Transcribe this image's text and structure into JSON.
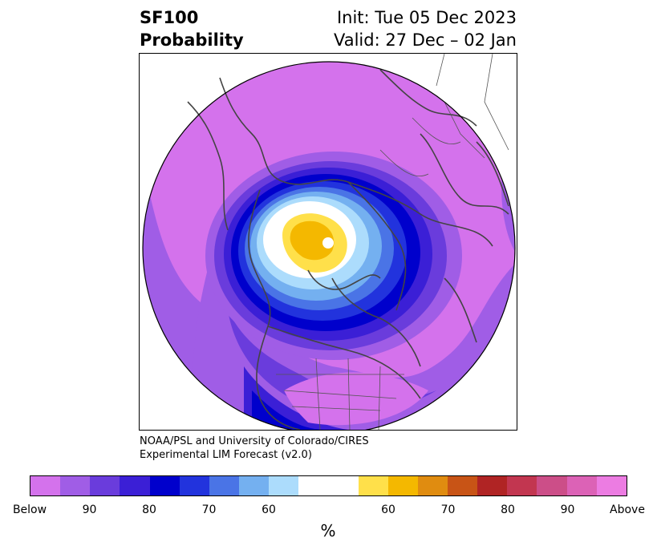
{
  "title": {
    "line1_left": "SF100",
    "line2_left": "Probability",
    "line1_right": "Init: Tue 05 Dec 2023",
    "line2_right": "Valid: 27 Dec – 02 Jan"
  },
  "credit": {
    "line1": "NOAA/PSL and University of Colorado/CIRES",
    "line2": "Experimental LIM Forecast (v2.0)"
  },
  "colorbar": {
    "unit_label": "%",
    "colors": [
      "#d472ec",
      "#a05de6",
      "#6a3cdc",
      "#3b1fd6",
      "#0000cc",
      "#2233dd",
      "#4a74e6",
      "#74b0f0",
      "#acdcfc",
      "#ffffff",
      "#ffe04a",
      "#f4b800",
      "#e08c10",
      "#c85416",
      "#b02424",
      "#c23650",
      "#cc4e88",
      "#dc62b6",
      "#ec7ce2"
    ],
    "widths": [
      1,
      1,
      1,
      1,
      1,
      1,
      1,
      1,
      1,
      2,
      1,
      1,
      1,
      1,
      1,
      1,
      1,
      1,
      1
    ],
    "ticks": [
      "Below",
      "90",
      "80",
      "70",
      "60",
      "60",
      "70",
      "80",
      "90",
      "Above"
    ],
    "tick_positions": [
      0,
      2,
      4,
      6,
      8,
      12,
      14,
      16,
      18,
      20
    ]
  }
}
